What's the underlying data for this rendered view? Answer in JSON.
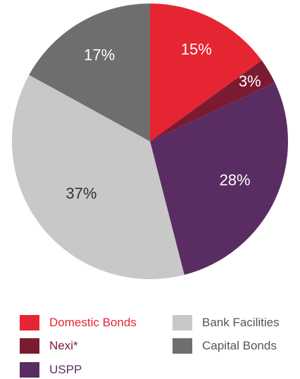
{
  "chart_data": {
    "type": "pie",
    "title": "",
    "slices": [
      {
        "name": "Domestic Bonds",
        "value": 15,
        "label": "15%",
        "color": "#e52531",
        "label_color": "#ffffff"
      },
      {
        "name": "Nexi*",
        "value": 3,
        "label": "3%",
        "color": "#7b1b32",
        "label_color": "#ffffff"
      },
      {
        "name": "USPP",
        "value": 28,
        "label": "28%",
        "color": "#5a2d62",
        "label_color": "#ffffff"
      },
      {
        "name": "Bank Facilities",
        "value": 37,
        "label": "37%",
        "color": "#c8c8c8",
        "label_color": "#333333"
      },
      {
        "name": "Capital Bonds",
        "value": 17,
        "label": "17%",
        "color": "#6e6e70",
        "label_color": "#ffffff"
      }
    ],
    "start_angle_deg": 0,
    "direction": "clockwise",
    "legend_placement": "bottom",
    "legend": [
      {
        "label": "Domestic Bonds",
        "color": "#e52531",
        "text_color": "#e52531"
      },
      {
        "label": "Bank Facilities",
        "color": "#c8c8c8",
        "text_color": "#555555"
      },
      {
        "label": "Nexi*",
        "color": "#7b1b32",
        "text_color": "#7b1b32"
      },
      {
        "label": "Capital Bonds",
        "color": "#6e6e70",
        "text_color": "#555555"
      },
      {
        "label": "USPP",
        "color": "#5a2d62",
        "text_color": "#5a2d62"
      }
    ]
  }
}
